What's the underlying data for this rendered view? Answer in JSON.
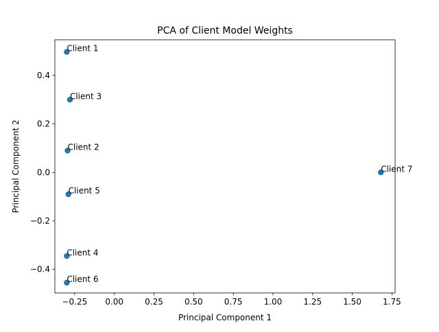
{
  "chart_data": {
    "type": "scatter",
    "title": "PCA of Client Model Weights",
    "xlabel": "Principal Component 1",
    "ylabel": "Principal Component 2",
    "xlim": [
      -0.375,
      1.77
    ],
    "ylim": [
      -0.497,
      0.547
    ],
    "xticks": [
      -0.25,
      0.0,
      0.25,
      0.5,
      0.75,
      1.0,
      1.25,
      1.5,
      1.75
    ],
    "xtick_labels": [
      "−0.25",
      "0.00",
      "0.25",
      "0.50",
      "0.75",
      "1.00",
      "1.25",
      "1.50",
      "1.75"
    ],
    "yticks": [
      -0.4,
      -0.2,
      0.0,
      0.2,
      0.4
    ],
    "ytick_labels": [
      "−0.4",
      "−0.2",
      "0.0",
      "0.2",
      "0.4"
    ],
    "grid": false,
    "marker_color": "#1f77b4",
    "points": [
      {
        "label": "Client 1",
        "x": -0.3,
        "y": 0.497
      },
      {
        "label": "Client 2",
        "x": -0.295,
        "y": 0.09
      },
      {
        "label": "Client 3",
        "x": -0.28,
        "y": 0.3
      },
      {
        "label": "Client 4",
        "x": -0.3,
        "y": -0.345
      },
      {
        "label": "Client 5",
        "x": -0.29,
        "y": -0.09
      },
      {
        "label": "Client 6",
        "x": -0.3,
        "y": -0.455
      },
      {
        "label": "Client 7",
        "x": 1.68,
        "y": 0.0
      }
    ]
  }
}
